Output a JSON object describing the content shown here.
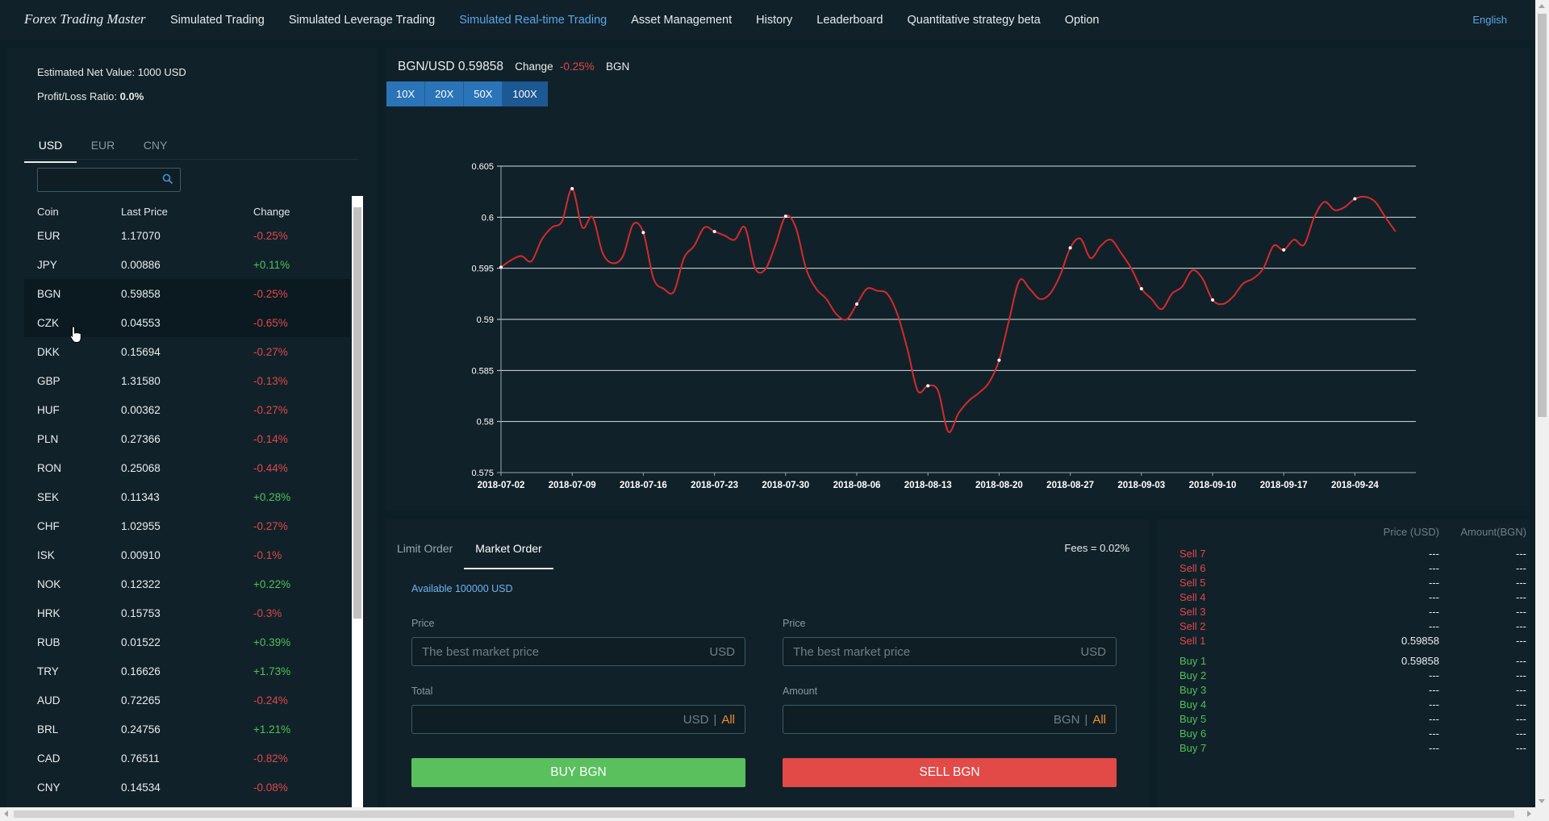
{
  "header": {
    "brand": "Forex Trading Master",
    "nav": [
      {
        "label": "Simulated Trading",
        "active": false
      },
      {
        "label": "Simulated Leverage Trading",
        "active": false
      },
      {
        "label": "Simulated Real-time Trading",
        "active": true
      },
      {
        "label": "Asset Management",
        "active": false
      },
      {
        "label": "History",
        "active": false
      },
      {
        "label": "Leaderboard",
        "active": false
      },
      {
        "label": "Quantitative strategy beta",
        "active": false
      },
      {
        "label": "Option",
        "active": false
      }
    ],
    "language": "English"
  },
  "account": {
    "net_value_label": "Estimated Net Value:",
    "net_value": "1000 USD",
    "pl_label": "Profit/Loss Ratio:",
    "pl_value": "0.0%"
  },
  "currency_tabs": [
    "USD",
    "EUR",
    "CNY"
  ],
  "active_currency_tab": 0,
  "search": {
    "placeholder": "",
    "icon": "search-icon"
  },
  "coin_table": {
    "headers": [
      "Coin",
      "Last Price",
      "Change"
    ],
    "rows": [
      {
        "coin": "EUR",
        "price": "1.17070",
        "change": "-0.25%"
      },
      {
        "coin": "JPY",
        "price": "0.00886",
        "change": "+0.11%"
      },
      {
        "coin": "BGN",
        "price": "0.59858",
        "change": "-0.25%"
      },
      {
        "coin": "CZK",
        "price": "0.04553",
        "change": "-0.65%"
      },
      {
        "coin": "DKK",
        "price": "0.15694",
        "change": "-0.27%"
      },
      {
        "coin": "GBP",
        "price": "1.31580",
        "change": "-0.13%"
      },
      {
        "coin": "HUF",
        "price": "0.00362",
        "change": "-0.27%"
      },
      {
        "coin": "PLN",
        "price": "0.27366",
        "change": "-0.14%"
      },
      {
        "coin": "RON",
        "price": "0.25068",
        "change": "-0.44%"
      },
      {
        "coin": "SEK",
        "price": "0.11343",
        "change": "+0.28%"
      },
      {
        "coin": "CHF",
        "price": "1.02955",
        "change": "-0.27%"
      },
      {
        "coin": "ISK",
        "price": "0.00910",
        "change": "-0.1%"
      },
      {
        "coin": "NOK",
        "price": "0.12322",
        "change": "+0.22%"
      },
      {
        "coin": "HRK",
        "price": "0.15753",
        "change": "-0.3%"
      },
      {
        "coin": "RUB",
        "price": "0.01522",
        "change": "+0.39%"
      },
      {
        "coin": "TRY",
        "price": "0.16626",
        "change": "+1.73%"
      },
      {
        "coin": "AUD",
        "price": "0.72265",
        "change": "-0.24%"
      },
      {
        "coin": "BRL",
        "price": "0.24756",
        "change": "+1.21%"
      },
      {
        "coin": "CAD",
        "price": "0.76511",
        "change": "-0.82%"
      },
      {
        "coin": "CNY",
        "price": "0.14534",
        "change": "-0.08%"
      }
    ]
  },
  "pair_header": {
    "pair": "BGN/USD 0.59858",
    "change_label": "Change",
    "change_value": "-0.25%",
    "base": "BGN"
  },
  "leverage": [
    "10X",
    "20X",
    "50X",
    "100X"
  ],
  "active_leverage": 3,
  "colors": {
    "line": "#d42a2e",
    "buy": "#59c05d",
    "sell": "#e24a48",
    "accent": "#2a74b7",
    "link": "#5aa6e8"
  },
  "chart_data": {
    "type": "line",
    "title": "",
    "ylim": [
      0.575,
      0.605
    ],
    "yticks": [
      "0.575",
      "0.58",
      "0.585",
      "0.59",
      "0.595",
      "0.6",
      "0.605"
    ],
    "xticks": [
      "2018-07-02",
      "2018-07-09",
      "2018-07-16",
      "2018-07-23",
      "2018-07-30",
      "2018-08-06",
      "2018-08-13",
      "2018-08-20",
      "2018-08-27",
      "2018-09-03",
      "2018-09-10",
      "2018-09-17",
      "2018-09-24"
    ],
    "x_start": "2018-07-02",
    "x": [
      "2018-07-02",
      "2018-07-03",
      "2018-07-04",
      "2018-07-05",
      "2018-07-06",
      "2018-07-07",
      "2018-07-08",
      "2018-07-09",
      "2018-07-10",
      "2018-07-11",
      "2018-07-12",
      "2018-07-13",
      "2018-07-14",
      "2018-07-15",
      "2018-07-16",
      "2018-07-17",
      "2018-07-18",
      "2018-07-19",
      "2018-07-20",
      "2018-07-21",
      "2018-07-22",
      "2018-07-23",
      "2018-07-24",
      "2018-07-25",
      "2018-07-26",
      "2018-07-27",
      "2018-07-28",
      "2018-07-29",
      "2018-07-30",
      "2018-07-31",
      "2018-08-01",
      "2018-08-02",
      "2018-08-03",
      "2018-08-04",
      "2018-08-05",
      "2018-08-06",
      "2018-08-07",
      "2018-08-08",
      "2018-08-09",
      "2018-08-10",
      "2018-08-11",
      "2018-08-12",
      "2018-08-13",
      "2018-08-14",
      "2018-08-15",
      "2018-08-16",
      "2018-08-17",
      "2018-08-18",
      "2018-08-19",
      "2018-08-20",
      "2018-08-21",
      "2018-08-22",
      "2018-08-23",
      "2018-08-24",
      "2018-08-25",
      "2018-08-26",
      "2018-08-27",
      "2018-08-28",
      "2018-08-29",
      "2018-08-30",
      "2018-08-31",
      "2018-09-01",
      "2018-09-02",
      "2018-09-03",
      "2018-09-04",
      "2018-09-05",
      "2018-09-06",
      "2018-09-07",
      "2018-09-08",
      "2018-09-09",
      "2018-09-10",
      "2018-09-11",
      "2018-09-12",
      "2018-09-13",
      "2018-09-14",
      "2018-09-15",
      "2018-09-16",
      "2018-09-17",
      "2018-09-18",
      "2018-09-19",
      "2018-09-20",
      "2018-09-21",
      "2018-09-22",
      "2018-09-23",
      "2018-09-24",
      "2018-09-25",
      "2018-09-26",
      "2018-09-27",
      "2018-09-28"
    ],
    "series": [
      {
        "values": [
          0.5951,
          0.5958,
          0.5962,
          0.5957,
          0.5978,
          0.599,
          0.5996,
          0.6028,
          0.599,
          0.6,
          0.5965,
          0.5955,
          0.5962,
          0.5993,
          0.5985,
          0.594,
          0.593,
          0.5927,
          0.596,
          0.5972,
          0.599,
          0.5986,
          0.5982,
          0.5978,
          0.599,
          0.595,
          0.5949,
          0.5973,
          0.6001,
          0.599,
          0.595,
          0.593,
          0.592,
          0.5905,
          0.59,
          0.5915,
          0.593,
          0.5928,
          0.5925,
          0.5905,
          0.587,
          0.583,
          0.5835,
          0.583,
          0.579,
          0.5808,
          0.582,
          0.5828,
          0.5838,
          0.586,
          0.59,
          0.5938,
          0.593,
          0.592,
          0.5925,
          0.5943,
          0.597,
          0.5979,
          0.596,
          0.5972,
          0.5978,
          0.5965,
          0.595,
          0.593,
          0.592,
          0.591,
          0.5925,
          0.5932,
          0.5948,
          0.594,
          0.5919,
          0.5915,
          0.5922,
          0.5935,
          0.594,
          0.595,
          0.5972,
          0.5968,
          0.5978,
          0.5973,
          0.6,
          0.6015,
          0.6007,
          0.601,
          0.6018,
          0.602,
          0.6015,
          0.6,
          0.5986
        ]
      }
    ],
    "grid": true,
    "legend": "none"
  },
  "order_form": {
    "tabs": [
      "Limit Order",
      "Market Order"
    ],
    "active_tab": 1,
    "fees": "Fees = 0.02%",
    "available": "Available 100000 USD",
    "buy": {
      "price_label": "Price",
      "price_placeholder": "The best market price",
      "price_unit": "USD",
      "total_label": "Total",
      "total_unit": "USD",
      "all_label": "All",
      "sep": "|",
      "button": "BUY BGN"
    },
    "sell": {
      "price_label": "Price",
      "price_placeholder": "The best market price",
      "price_unit": "USD",
      "amount_label": "Amount",
      "amount_unit": "BGN",
      "all_label": "All",
      "sep": "|",
      "button": "SELL BGN"
    }
  },
  "order_book": {
    "price_header": "Price (USD)",
    "amount_header": "Amount(BGN)",
    "sells": [
      {
        "label": "Sell 7",
        "price": "---",
        "amount": "---"
      },
      {
        "label": "Sell 6",
        "price": "---",
        "amount": "---"
      },
      {
        "label": "Sell 5",
        "price": "---",
        "amount": "---"
      },
      {
        "label": "Sell 4",
        "price": "---",
        "amount": "---"
      },
      {
        "label": "Sell 3",
        "price": "---",
        "amount": "---"
      },
      {
        "label": "Sell 2",
        "price": "---",
        "amount": "---"
      },
      {
        "label": "Sell 1",
        "price": "0.59858",
        "amount": "---"
      }
    ],
    "buys": [
      {
        "label": "Buy 1",
        "price": "0.59858",
        "amount": "---"
      },
      {
        "label": "Buy 2",
        "price": "---",
        "amount": "---"
      },
      {
        "label": "Buy 3",
        "price": "---",
        "amount": "---"
      },
      {
        "label": "Buy 4",
        "price": "---",
        "amount": "---"
      },
      {
        "label": "Buy 5",
        "price": "---",
        "amount": "---"
      },
      {
        "label": "Buy 6",
        "price": "---",
        "amount": "---"
      },
      {
        "label": "Buy 7",
        "price": "---",
        "amount": "---"
      }
    ]
  }
}
